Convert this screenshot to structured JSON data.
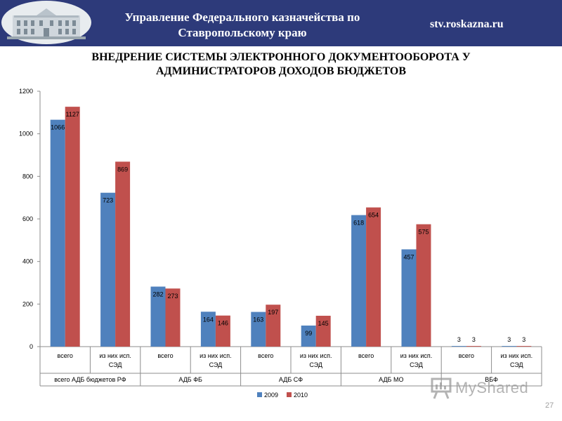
{
  "header": {
    "org_line1": "Управление Федерального казначейства по",
    "org_line2": "Ставропольскому краю",
    "website": "stv.roskazna.ru",
    "bg_color": "#2d3a7a"
  },
  "slide": {
    "title_line1": "ВНЕДРЕНИЕ СИСТЕМЫ ЭЛЕКТРОННОГО ДОКУМЕНТООБОРОТА У",
    "title_line2": "АДМИНИСТРАТОРОВ ДОХОДОВ БЮДЖЕТОВ",
    "page_number": "27"
  },
  "watermark": {
    "text": "MyShared"
  },
  "chart_data": {
    "type": "bar",
    "ylim": [
      0,
      1200
    ],
    "yticks": [
      0,
      200,
      400,
      600,
      800,
      1000,
      1200
    ],
    "grid": false,
    "legend_position": "bottom",
    "groups": [
      {
        "label": "всего АДБ бюджетов РФ",
        "categories": [
          "всего",
          "из них исп. СЭД"
        ]
      },
      {
        "label": "АДБ ФБ",
        "categories": [
          "всего",
          "из них исп. СЭД"
        ]
      },
      {
        "label": "АДБ СФ",
        "categories": [
          "всего",
          "из них исп. СЭД"
        ]
      },
      {
        "label": "АДБ МО",
        "categories": [
          "всего",
          "из них исп. СЭД"
        ]
      },
      {
        "label": "ВБФ",
        "categories": [
          "всего",
          "из них исп. СЭД"
        ]
      }
    ],
    "series": [
      {
        "name": "2009",
        "color": "#4f81bd",
        "values": [
          1066,
          723,
          282,
          164,
          163,
          99,
          618,
          457,
          3,
          3
        ]
      },
      {
        "name": "2010",
        "color": "#c0504d",
        "values": [
          1127,
          869,
          273,
          146,
          197,
          145,
          654,
          575,
          3,
          3
        ]
      }
    ]
  }
}
